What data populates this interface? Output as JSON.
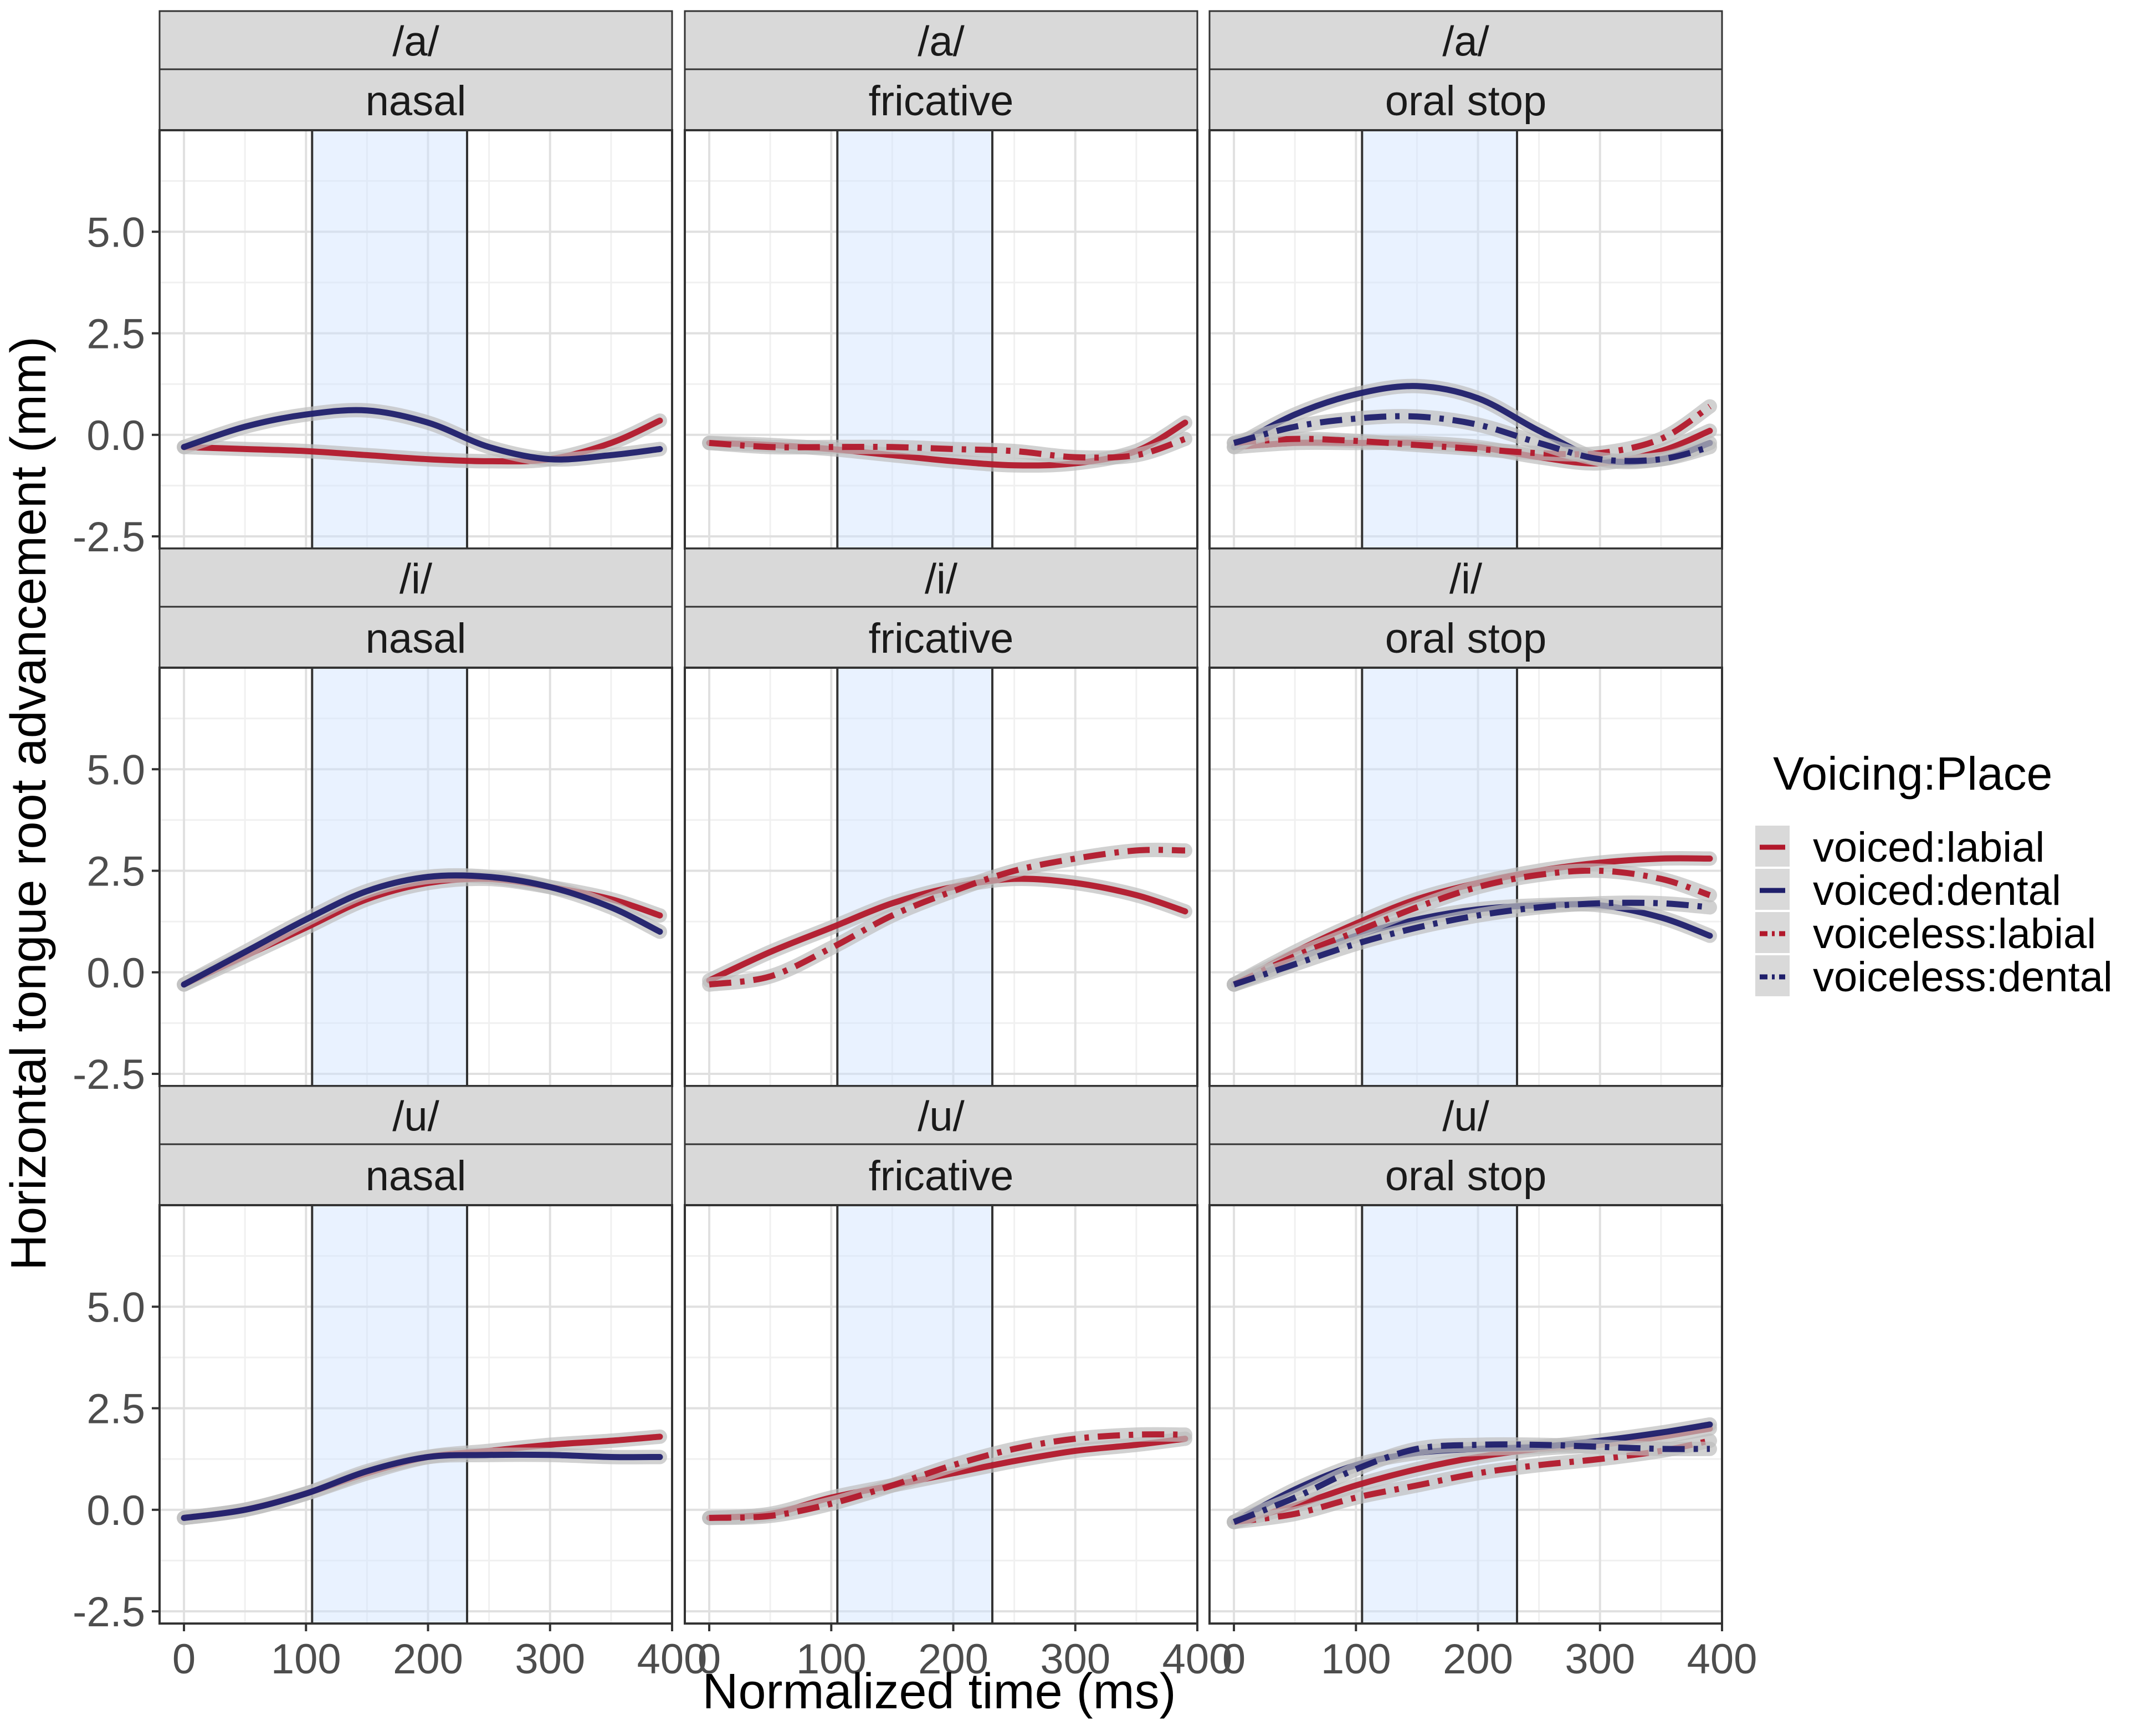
{
  "chart_data": {
    "type": "line",
    "title": "",
    "xlabel": "Normalized time (ms)",
    "ylabel": "Horizontal tongue root advancement (mm)",
    "xlim": [
      -20,
      400
    ],
    "ylim": [
      -2.8,
      7.5
    ],
    "x_ticks": [
      "0",
      "100",
      "200",
      "300",
      "400"
    ],
    "y_ticks": [
      "5.0",
      "2.5",
      "0.0",
      "-2.5"
    ],
    "shaded_interval_ms": [
      105,
      232
    ],
    "legend": {
      "title": "Voicing:Place",
      "position": "right",
      "entries": [
        {
          "label": "voiced:labial",
          "color": "#b2182b",
          "dash": "solid"
        },
        {
          "label": "voiced:dental",
          "color": "#1f1f6b",
          "dash": "solid"
        },
        {
          "label": "voiceless:labial",
          "color": "#b2182b",
          "dash": "dotdash"
        },
        {
          "label": "voiceless:dental",
          "color": "#1f1f6b",
          "dash": "dotdash"
        }
      ]
    },
    "facet_rows": [
      "/a/",
      "/i/",
      "/u/"
    ],
    "facet_cols": [
      "nasal",
      "fricative",
      "oral stop"
    ],
    "x": [
      0,
      50,
      100,
      150,
      200,
      250,
      300,
      350,
      390
    ],
    "panels": [
      {
        "vowel": "/a/",
        "manner": "nasal",
        "series": [
          {
            "name": "voiced:labial",
            "values": [
              -0.3,
              -0.35,
              -0.4,
              -0.5,
              -0.6,
              -0.65,
              -0.6,
              -0.2,
              0.35
            ]
          },
          {
            "name": "voiced:dental",
            "values": [
              -0.3,
              0.2,
              0.5,
              0.6,
              0.3,
              -0.3,
              -0.6,
              -0.5,
              -0.35
            ]
          }
        ]
      },
      {
        "vowel": "/a/",
        "manner": "fricative",
        "series": [
          {
            "name": "voiced:labial",
            "values": [
              -0.2,
              -0.25,
              -0.35,
              -0.5,
              -0.65,
              -0.75,
              -0.7,
              -0.4,
              0.3
            ]
          },
          {
            "name": "voiceless:labial",
            "values": [
              -0.2,
              -0.3,
              -0.3,
              -0.3,
              -0.35,
              -0.4,
              -0.55,
              -0.5,
              -0.1
            ]
          }
        ]
      },
      {
        "vowel": "/a/",
        "manner": "oral stop",
        "series": [
          {
            "name": "voiced:labial",
            "values": [
              -0.3,
              -0.2,
              -0.2,
              -0.2,
              -0.3,
              -0.55,
              -0.7,
              -0.4,
              0.1
            ]
          },
          {
            "name": "voiced:dental",
            "values": [
              -0.3,
              0.5,
              1.0,
              1.2,
              0.9,
              0.1,
              -0.6,
              -0.6,
              -0.2
            ]
          },
          {
            "name": "voiceless:labial",
            "values": [
              -0.2,
              -0.1,
              -0.15,
              -0.25,
              -0.35,
              -0.45,
              -0.45,
              -0.1,
              0.7
            ]
          },
          {
            "name": "voiceless:dental",
            "values": [
              -0.2,
              0.2,
              0.4,
              0.45,
              0.25,
              -0.2,
              -0.6,
              -0.6,
              -0.3
            ]
          }
        ]
      },
      {
        "vowel": "/i/",
        "manner": "nasal",
        "series": [
          {
            "name": "voiced:labial",
            "values": [
              -0.3,
              0.4,
              1.1,
              1.8,
              2.2,
              2.3,
              2.1,
              1.8,
              1.4
            ]
          },
          {
            "name": "voiced:dental",
            "values": [
              -0.3,
              0.5,
              1.3,
              2.0,
              2.35,
              2.35,
              2.1,
              1.6,
              1.0
            ]
          }
        ]
      },
      {
        "vowel": "/i/",
        "manner": "fricative",
        "series": [
          {
            "name": "voiced:labial",
            "values": [
              -0.2,
              0.5,
              1.1,
              1.7,
              2.1,
              2.3,
              2.2,
              1.9,
              1.5
            ]
          },
          {
            "name": "voiceless:labial",
            "values": [
              -0.3,
              -0.1,
              0.6,
              1.4,
              2.0,
              2.5,
              2.8,
              3.0,
              3.0
            ]
          }
        ]
      },
      {
        "vowel": "/i/",
        "manner": "oral stop",
        "series": [
          {
            "name": "voiced:labial",
            "values": [
              -0.3,
              0.5,
              1.2,
              1.8,
              2.2,
              2.5,
              2.7,
              2.8,
              2.8
            ]
          },
          {
            "name": "voiced:dental",
            "values": [
              -0.3,
              0.3,
              0.9,
              1.3,
              1.55,
              1.65,
              1.65,
              1.35,
              0.9
            ]
          },
          {
            "name": "voiceless:labial",
            "values": [
              -0.3,
              0.4,
              1.0,
              1.6,
              2.1,
              2.4,
              2.5,
              2.3,
              1.9
            ]
          },
          {
            "name": "voiceless:dental",
            "values": [
              -0.3,
              0.2,
              0.7,
              1.1,
              1.4,
              1.6,
              1.7,
              1.7,
              1.6
            ]
          }
        ]
      },
      {
        "vowel": "/u/",
        "manner": "nasal",
        "series": [
          {
            "name": "voiced:labial",
            "values": [
              -0.2,
              0.0,
              0.4,
              0.9,
              1.3,
              1.45,
              1.6,
              1.7,
              1.8
            ]
          },
          {
            "name": "voiced:dental",
            "values": [
              -0.2,
              0.0,
              0.4,
              0.95,
              1.3,
              1.35,
              1.35,
              1.3,
              1.3
            ]
          }
        ]
      },
      {
        "vowel": "/u/",
        "manner": "fricative",
        "series": [
          {
            "name": "voiced:labial",
            "values": [
              -0.2,
              -0.1,
              0.3,
              0.6,
              0.9,
              1.2,
              1.45,
              1.6,
              1.75
            ]
          },
          {
            "name": "voiceless:labial",
            "values": [
              -0.2,
              -0.15,
              0.15,
              0.6,
              1.1,
              1.5,
              1.75,
              1.85,
              1.85
            ]
          }
        ]
      },
      {
        "vowel": "/u/",
        "manner": "oral stop",
        "series": [
          {
            "name": "voiced:labial",
            "values": [
              -0.3,
              0.1,
              0.6,
              1.0,
              1.3,
              1.5,
              1.6,
              1.8,
              2.0
            ]
          },
          {
            "name": "voiced:dental",
            "values": [
              -0.3,
              0.5,
              1.1,
              1.4,
              1.5,
              1.55,
              1.7,
              1.9,
              2.1
            ]
          },
          {
            "name": "voiceless:labial",
            "values": [
              -0.3,
              -0.1,
              0.3,
              0.6,
              0.9,
              1.1,
              1.25,
              1.45,
              1.7
            ]
          },
          {
            "name": "voiceless:dental",
            "values": [
              -0.3,
              0.3,
              1.0,
              1.5,
              1.6,
              1.6,
              1.55,
              1.5,
              1.5
            ]
          }
        ]
      }
    ]
  }
}
